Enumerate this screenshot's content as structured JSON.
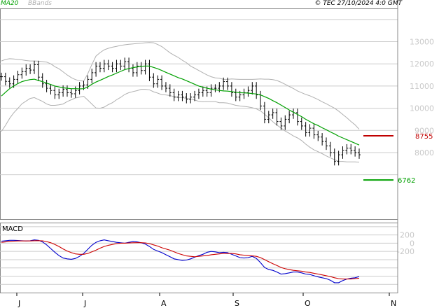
{
  "header": {
    "copyright": "© TEC 27/10/2024 4:0 GMT",
    "legend": [
      {
        "label": "MA20",
        "color": "#00a000"
      },
      {
        "label": "BBands",
        "color": "#b0b0b0"
      }
    ]
  },
  "chart_data": [
    {
      "type": "bar",
      "subtype": "ohlc",
      "title": "",
      "y_ticks": [
        8000,
        9000,
        10000,
        11000,
        12000,
        13000
      ],
      "y_tick_labels": [
        "8000",
        "9000",
        "10000",
        "11000",
        "12000",
        "13000"
      ],
      "ylim": [
        5000,
        14500
      ],
      "x_tick_labels": [
        "J",
        "J",
        "A",
        "S",
        "O",
        "N"
      ],
      "grid": true,
      "close": [
        11420,
        11210,
        11100,
        11300,
        11510,
        11650,
        11800,
        11720,
        11960,
        11400,
        11100,
        10900,
        10800,
        10600,
        10700,
        10850,
        10700,
        10650,
        10800,
        11000,
        11050,
        11300,
        11600,
        11900,
        11800,
        12000,
        11900,
        11800,
        12000,
        11900,
        12100,
        11800,
        11600,
        11900,
        11700,
        12000,
        11400,
        11100,
        11300,
        11000,
        10900,
        10700,
        10500,
        10600,
        10500,
        10400,
        10500,
        10600,
        10700,
        10800,
        10700,
        10900,
        10900,
        11000,
        11200,
        11000,
        10700,
        10500,
        10600,
        10700,
        10800,
        11000,
        10600,
        10100,
        9500,
        9700,
        9800,
        9400,
        9200,
        9500,
        9700,
        9800,
        9400,
        9200,
        8900,
        9100,
        8800,
        8700,
        8500,
        8300,
        8000,
        7600,
        7900,
        8100,
        8200,
        8100,
        8000,
        7900
      ],
      "series": [
        {
          "name": "MA20",
          "color": "#00a000",
          "values": [
            10550,
            10720,
            10880,
            11000,
            11110,
            11200,
            11250,
            11290,
            11310,
            11250,
            11200,
            11130,
            11070,
            11000,
            10960,
            10920,
            10900,
            10880,
            10880,
            10870,
            10880,
            10960,
            11080,
            11180,
            11260,
            11340,
            11430,
            11500,
            11580,
            11660,
            11740,
            11790,
            11830,
            11860,
            11890,
            11900,
            11900,
            11840,
            11780,
            11700,
            11620,
            11540,
            11460,
            11380,
            11320,
            11240,
            11160,
            11080,
            11000,
            10950,
            10900,
            10860,
            10830,
            10800,
            10780,
            10770,
            10750,
            10720,
            10700,
            10690,
            10680,
            10660,
            10640,
            10600,
            10520,
            10440,
            10340,
            10250,
            10140,
            10030,
            9920,
            9820,
            9720,
            9620,
            9500,
            9400,
            9300,
            9220,
            9120,
            9030,
            8930,
            8840,
            8740,
            8660,
            8580,
            8500,
            8420,
            8340
          ]
        },
        {
          "name": "BBands",
          "color": "#b0b0b0",
          "upper": [
            12130,
            12200,
            12230,
            12220,
            12200,
            12180,
            12150,
            12130,
            12130,
            12120,
            12100,
            12080,
            12000,
            11870,
            11780,
            11640,
            11500,
            11380,
            11290,
            11240,
            11220,
            11550,
            11970,
            12350,
            12510,
            12630,
            12700,
            12750,
            12790,
            12830,
            12860,
            12880,
            12900,
            12920,
            12930,
            12950,
            12960,
            12950,
            12870,
            12780,
            12640,
            12500,
            12390,
            12290,
            12160,
            12050,
            11900,
            11800,
            11700,
            11600,
            11500,
            11420,
            11370,
            11350,
            11300,
            11300,
            11320,
            11310,
            11300,
            11300,
            11300,
            11300,
            11310,
            11320,
            11310,
            11310,
            11290,
            11250,
            11170,
            11080,
            10980,
            10890,
            10780,
            10700,
            10620,
            10560,
            10480,
            10390,
            10290,
            10200,
            10100,
            10000,
            9870,
            9720,
            9570,
            9400,
            9250,
            9050
          ],
          "lower": [
            8950,
            9230,
            9540,
            9790,
            9990,
            10200,
            10320,
            10440,
            10480,
            10390,
            10310,
            10190,
            10130,
            10130,
            10150,
            10190,
            10300,
            10380,
            10460,
            10500,
            10540,
            10370,
            10190,
            10010,
            10000,
            10050,
            10160,
            10250,
            10380,
            10490,
            10620,
            10700,
            10750,
            10790,
            10850,
            10850,
            10830,
            10740,
            10680,
            10610,
            10600,
            10570,
            10520,
            10480,
            10480,
            10440,
            10420,
            10370,
            10310,
            10290,
            10300,
            10300,
            10300,
            10250,
            10250,
            10230,
            10180,
            10130,
            10100,
            10080,
            10060,
            10020,
            9970,
            9880,
            9730,
            9560,
            9390,
            9240,
            9110,
            8970,
            8870,
            8750,
            8660,
            8540,
            8380,
            8240,
            8120,
            8040,
            7950,
            7850,
            7760,
            7680,
            7600,
            7600,
            7580,
            7580,
            7580,
            7570
          ]
        }
      ],
      "annotations": [
        {
          "label": "8755",
          "value": 8755,
          "color": "#c00000"
        },
        {
          "label": "6762",
          "value": 6762,
          "color": "#00a000"
        }
      ]
    },
    {
      "type": "line",
      "title": "MACD",
      "ylim": [
        -1200,
        500
      ],
      "y_ticks": [
        200,
        0,
        -200
      ],
      "y_tick_labels": [
        "200",
        "0",
        "-200"
      ],
      "grid": true,
      "series": [
        {
          "name": "",
          "color": "#0000cc",
          "values": [
            50,
            60,
            70,
            70,
            65,
            60,
            55,
            60,
            80,
            70,
            30,
            -40,
            -130,
            -220,
            -300,
            -360,
            -380,
            -390,
            -370,
            -320,
            -250,
            -150,
            -50,
            20,
            60,
            80,
            60,
            40,
            20,
            10,
            0,
            20,
            40,
            30,
            10,
            -20,
            -80,
            -150,
            -190,
            -230,
            -280,
            -330,
            -380,
            -400,
            -420,
            -410,
            -380,
            -340,
            -300,
            -270,
            -220,
            -200,
            -210,
            -230,
            -220,
            -230,
            -270,
            -310,
            -350,
            -360,
            -350,
            -320,
            -370,
            -470,
            -590,
            -640,
            -660,
            -700,
            -750,
            -740,
            -720,
            -700,
            -700,
            -720,
            -750,
            -760,
            -790,
            -820,
            -840,
            -860,
            -900,
            -960,
            -960,
            -910,
            -870,
            -850,
            -840,
            -810
          ]
        },
        {
          "name": "",
          "color": "#cc0000",
          "values": [
            20,
            30,
            40,
            50,
            55,
            55,
            55,
            55,
            60,
            62,
            57,
            40,
            10,
            -30,
            -80,
            -140,
            -190,
            -230,
            -260,
            -270,
            -270,
            -250,
            -210,
            -170,
            -120,
            -80,
            -50,
            -30,
            -10,
            0,
            0,
            5,
            10,
            12,
            12,
            5,
            -10,
            -40,
            -70,
            -110,
            -140,
            -170,
            -210,
            -250,
            -280,
            -310,
            -320,
            -330,
            -320,
            -310,
            -300,
            -280,
            -270,
            -260,
            -250,
            -250,
            -250,
            -260,
            -280,
            -290,
            -300,
            -310,
            -320,
            -350,
            -400,
            -450,
            -500,
            -540,
            -590,
            -620,
            -640,
            -660,
            -670,
            -680,
            -700,
            -710,
            -730,
            -750,
            -770,
            -790,
            -810,
            -840,
            -860,
            -870,
            -870,
            -870,
            -860,
            -850
          ]
        }
      ]
    }
  ]
}
